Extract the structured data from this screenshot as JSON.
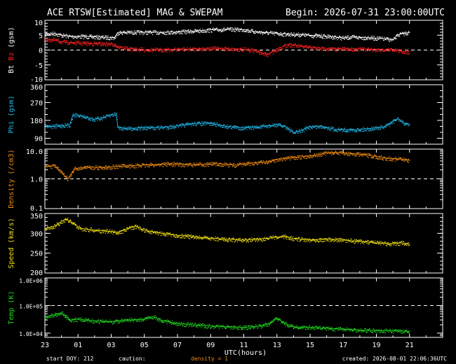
{
  "header": {
    "title": "ACE RTSW[Estimated] MAG & SWEPAM",
    "begin": "Begin: 2026-07-31 23:00:00UTC"
  },
  "footer": {
    "start_doy": "start DOY: 212",
    "caution": "caution:",
    "density_note": "density < 1",
    "created": "created: 2026-08-01 22:06:36UTC"
  },
  "colors": {
    "bt": "#ffffff",
    "bz": "#ff2020",
    "phi": "#20b8e8",
    "density": "#f08c10",
    "speed": "#f0e010",
    "temp": "#20d820",
    "frame": "#ffffff",
    "caution": "#f08c10"
  },
  "chart_data": {
    "type": "scatter",
    "xlabel": "UTC(hours)",
    "x_ticks": [
      "23",
      "01",
      "03",
      "05",
      "07",
      "09",
      "11",
      "13",
      "15",
      "17",
      "19",
      "21"
    ],
    "x_range_hours": [
      0,
      24
    ],
    "panels": [
      {
        "id": "mag",
        "ylabel_parts": [
          {
            "text": "Bt",
            "color": "#ffffff"
          },
          {
            "text": " ",
            "color": "#ffffff"
          },
          {
            "text": "Bz",
            "color": "#ff2020"
          },
          {
            "text": " (gsm)",
            "color": "#ffffff"
          }
        ],
        "scale": "linear",
        "ylim": [
          -10,
          10
        ],
        "y_ticks": [
          "10",
          "5",
          "0",
          "-5",
          "-10"
        ],
        "y_tick_values": [
          10,
          5,
          0,
          -5,
          -10
        ],
        "ref_line": 0,
        "series": [
          {
            "name": "Bt",
            "color": "#ffffff",
            "points": [
              [
                0,
                5.4
              ],
              [
                0.6,
                5.6
              ],
              [
                1,
                5.0
              ],
              [
                1.6,
                4.6
              ],
              [
                2.4,
                4.6
              ],
              [
                3.2,
                4.4
              ],
              [
                4.2,
                4.2
              ],
              [
                4.4,
                5.9
              ],
              [
                5,
                6.0
              ],
              [
                6,
                6.0
              ],
              [
                7,
                6.0
              ],
              [
                8,
                6.1
              ],
              [
                9,
                6.4
              ],
              [
                10,
                6.8
              ],
              [
                11,
                7.0
              ],
              [
                12,
                6.9
              ],
              [
                12.7,
                6.2
              ],
              [
                13.5,
                5.8
              ],
              [
                14.5,
                5.4
              ],
              [
                15.5,
                5.2
              ],
              [
                16.5,
                4.8
              ],
              [
                17.5,
                4.4
              ],
              [
                18,
                4.1
              ],
              [
                18.5,
                4.4
              ],
              [
                19.5,
                4.2
              ],
              [
                20.3,
                3.9
              ],
              [
                20.7,
                3.7
              ],
              [
                21,
                3.4
              ],
              [
                21.3,
                5.2
              ],
              [
                21.6,
                5.5
              ],
              [
                22,
                6.0
              ]
            ]
          },
          {
            "name": "Bz",
            "color": "#ff2020",
            "points": [
              [
                0,
                3.6
              ],
              [
                0.6,
                3.4
              ],
              [
                1,
                2.8
              ],
              [
                2,
                2.4
              ],
              [
                3,
                2.2
              ],
              [
                4.2,
                2.0
              ],
              [
                4.4,
                1.0
              ],
              [
                5,
                0.5
              ],
              [
                6,
                0.2
              ],
              [
                7,
                0.1
              ],
              [
                8,
                0.3
              ],
              [
                9,
                0.4
              ],
              [
                10,
                0.6
              ],
              [
                11,
                0.5
              ],
              [
                12,
                0.2
              ],
              [
                12.6,
                0.0
              ],
              [
                13,
                -0.8
              ],
              [
                13.4,
                -1.6
              ],
              [
                13.8,
                -0.4
              ],
              [
                14.2,
                0.8
              ],
              [
                14.7,
                1.9
              ],
              [
                15.5,
                1.2
              ],
              [
                16.5,
                0.6
              ],
              [
                17.5,
                0.4
              ],
              [
                18.5,
                0.4
              ],
              [
                19.5,
                0.3
              ],
              [
                20.5,
                0.1
              ],
              [
                21,
                0.3
              ],
              [
                21.5,
                -0.4
              ],
              [
                22,
                -0.6
              ]
            ]
          }
        ]
      },
      {
        "id": "phi",
        "ylabel_parts": [
          {
            "text": "Phi (gsm)",
            "color": "#20b8e8"
          }
        ],
        "scale": "linear",
        "ylim": [
          60,
          360
        ],
        "y_ticks": [
          "360",
          "270",
          "180",
          "90"
        ],
        "y_tick_values": [
          360,
          270,
          180,
          90
        ],
        "series": [
          {
            "name": "Phi",
            "color": "#20b8e8",
            "points": [
              [
                0,
                155
              ],
              [
                0.5,
                150
              ],
              [
                1.5,
                158
              ],
              [
                1.7,
                210
              ],
              [
                2,
                205
              ],
              [
                3,
                185
              ],
              [
                3.5,
                195
              ],
              [
                4,
                208
              ],
              [
                4.3,
                215
              ],
              [
                4.4,
                145
              ],
              [
                5,
                140
              ],
              [
                6,
                142
              ],
              [
                7,
                145
              ],
              [
                8,
                152
              ],
              [
                9,
                165
              ],
              [
                10,
                165
              ],
              [
                11,
                150
              ],
              [
                12,
                142
              ],
              [
                13,
                148
              ],
              [
                14,
                158
              ],
              [
                14.5,
                150
              ],
              [
                15,
                118
              ],
              [
                15.5,
                130
              ],
              [
                16,
                148
              ],
              [
                16.8,
                150
              ],
              [
                17.5,
                135
              ],
              [
                18.5,
                132
              ],
              [
                19.5,
                138
              ],
              [
                20.5,
                148
              ],
              [
                21,
                175
              ],
              [
                21.3,
                190
              ],
              [
                21.6,
                168
              ],
              [
                22,
                160
              ]
            ]
          }
        ]
      },
      {
        "id": "density",
        "ylabel_parts": [
          {
            "text": "Density (/cm3)",
            "color": "#f08c10"
          }
        ],
        "scale": "log",
        "ylim": [
          0.1,
          10
        ],
        "y_ticks": [
          "10.0",
          "1.0",
          "0.1"
        ],
        "y_tick_values": [
          10,
          1,
          0.1
        ],
        "ref_line": 1,
        "series": [
          {
            "name": "Density",
            "color": "#f08c10",
            "points": [
              [
                0,
                2.5
              ],
              [
                0.6,
                2.8
              ],
              [
                1,
                1.6
              ],
              [
                1.4,
                1.0
              ],
              [
                1.8,
                2.2
              ],
              [
                2.5,
                2.5
              ],
              [
                3.5,
                2.4
              ],
              [
                4.5,
                2.7
              ],
              [
                5.5,
                2.8
              ],
              [
                6.5,
                3.0
              ],
              [
                7.5,
                3.2
              ],
              [
                8.5,
                3.0
              ],
              [
                9.5,
                3.1
              ],
              [
                10.5,
                3.2
              ],
              [
                11.5,
                2.9
              ],
              [
                12.5,
                3.4
              ],
              [
                13.5,
                3.8
              ],
              [
                14,
                4.5
              ],
              [
                14.5,
                4.8
              ],
              [
                15.5,
                5.5
              ],
              [
                16.5,
                6.5
              ],
              [
                17,
                7.5
              ],
              [
                17.5,
                7.8
              ],
              [
                18.5,
                7.0
              ],
              [
                19.5,
                6.2
              ],
              [
                20.5,
                5.0
              ],
              [
                21.5,
                4.6
              ],
              [
                22,
                4.2
              ]
            ]
          }
        ]
      },
      {
        "id": "speed",
        "ylabel_parts": [
          {
            "text": "Speed (km/s)",
            "color": "#f0e010"
          }
        ],
        "scale": "linear",
        "ylim": [
          200,
          350
        ],
        "y_ticks": [
          "350",
          "300",
          "250",
          "200"
        ],
        "y_tick_values": [
          350,
          300,
          250,
          200
        ],
        "series": [
          {
            "name": "Speed",
            "color": "#f0e010",
            "points": [
              [
                0,
                312
              ],
              [
                0.6,
                318
              ],
              [
                1,
                330
              ],
              [
                1.3,
                336
              ],
              [
                1.8,
                322
              ],
              [
                2.2,
                312
              ],
              [
                3,
                308
              ],
              [
                4,
                305
              ],
              [
                4.4,
                302
              ],
              [
                5,
                312
              ],
              [
                5.5,
                318
              ],
              [
                6,
                308
              ],
              [
                7,
                300
              ],
              [
                8,
                295
              ],
              [
                9,
                291
              ],
              [
                10,
                288
              ],
              [
                11,
                285
              ],
              [
                12,
                283
              ],
              [
                13,
                286
              ],
              [
                14,
                290
              ],
              [
                14.5,
                292
              ],
              [
                15,
                287
              ],
              [
                16,
                284
              ],
              [
                17,
                285
              ],
              [
                18,
                283
              ],
              [
                19,
                280
              ],
              [
                20,
                276
              ],
              [
                21,
                274
              ],
              [
                21.5,
                276
              ],
              [
                22,
                274
              ]
            ]
          }
        ]
      },
      {
        "id": "temp",
        "ylabel_parts": [
          {
            "text": "Temp (K)",
            "color": "#20d820"
          }
        ],
        "scale": "log",
        "ylim": [
          7000,
          1000000
        ],
        "y_ticks": [
          "1.0E+06",
          "1.0E+05",
          "1.0E+04"
        ],
        "y_tick_values": [
          1000000,
          100000,
          10000
        ],
        "ref_line": 100000,
        "series": [
          {
            "name": "Temp",
            "color": "#20d820",
            "points": [
              [
                0,
                38000
              ],
              [
                0.5,
                45000
              ],
              [
                1,
                55000
              ],
              [
                1.5,
                30000
              ],
              [
                2,
                32000
              ],
              [
                3,
                28000
              ],
              [
                4,
                26000
              ],
              [
                5,
                30000
              ],
              [
                6,
                32000
              ],
              [
                6.5,
                40000
              ],
              [
                7,
                30000
              ],
              [
                8,
                22000
              ],
              [
                9,
                20000
              ],
              [
                10,
                18000
              ],
              [
                11,
                17000
              ],
              [
                12,
                16000
              ],
              [
                13,
                18000
              ],
              [
                13.5,
                22000
              ],
              [
                14,
                35000
              ],
              [
                14.5,
                22000
              ],
              [
                15,
                17000
              ],
              [
                16,
                16000
              ],
              [
                17,
                15000
              ],
              [
                18,
                14000
              ],
              [
                19,
                13000
              ],
              [
                20,
                12500
              ],
              [
                21,
                12000
              ],
              [
                22,
                11500
              ]
            ]
          }
        ]
      }
    ]
  }
}
